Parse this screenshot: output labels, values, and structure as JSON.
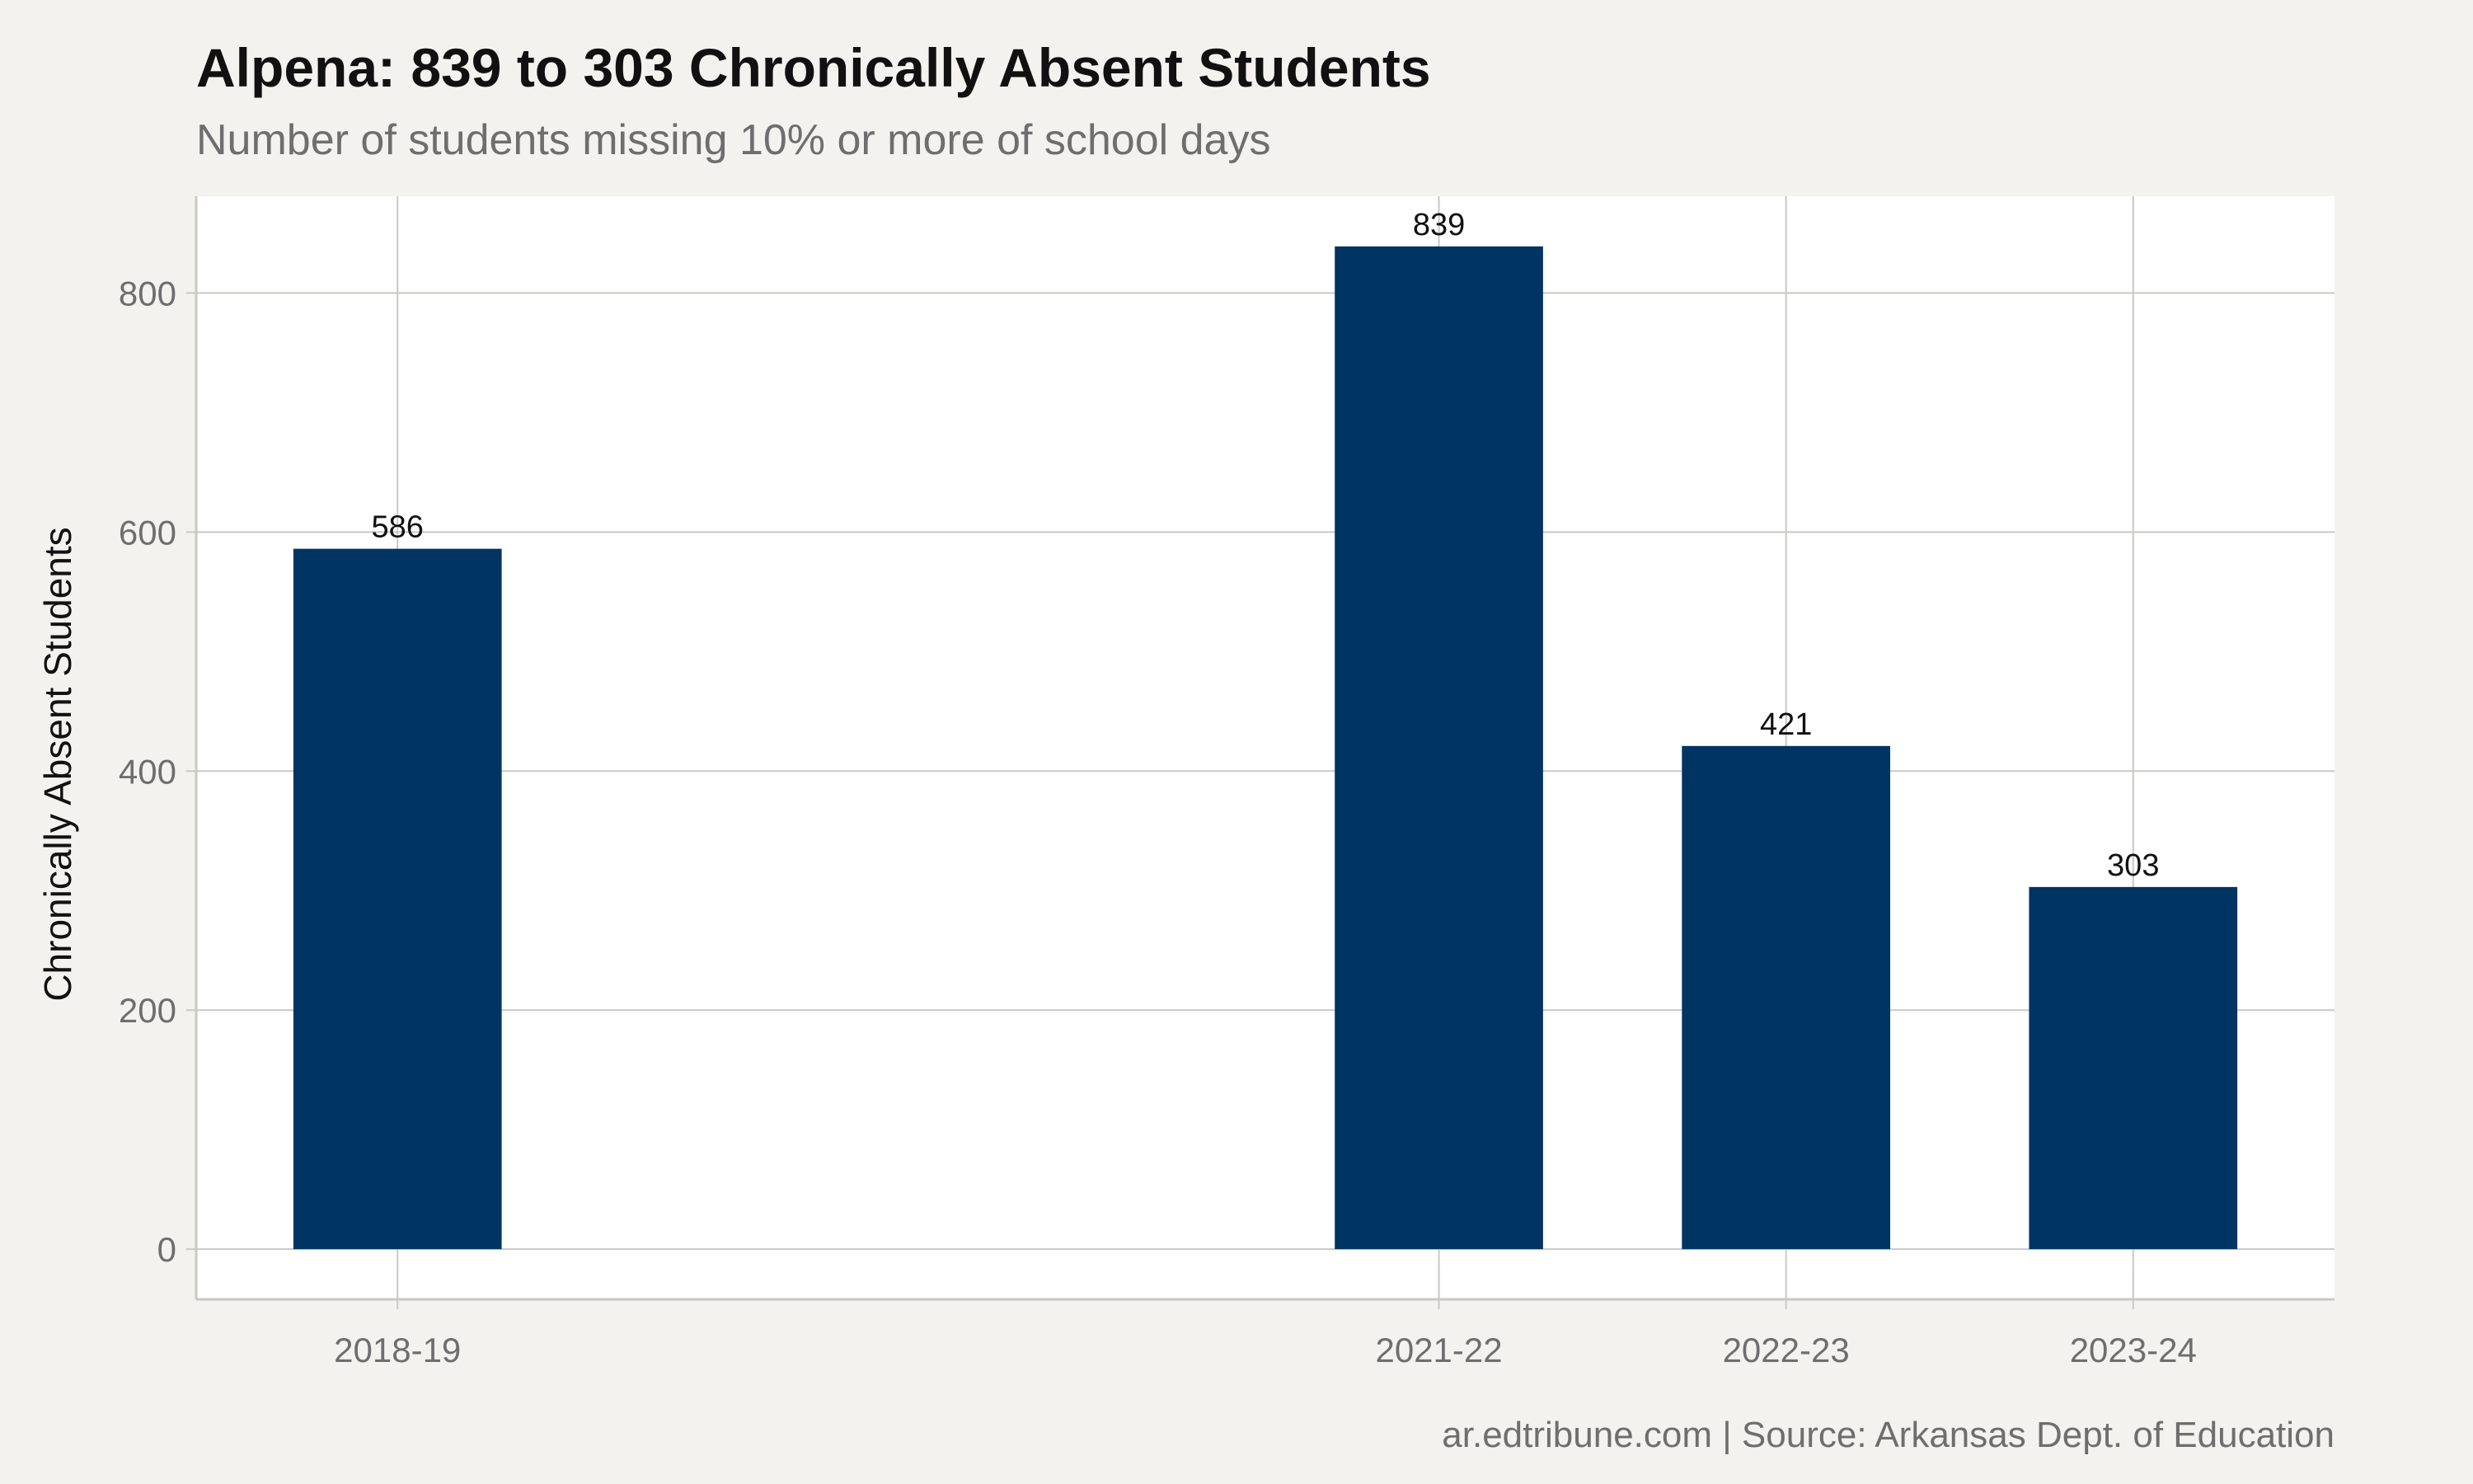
{
  "chart_data": {
    "type": "bar",
    "title": "Alpena: 839 to 303 Chronically Absent Students",
    "subtitle": "Number of students missing 10% or more of school days",
    "ylabel": "Chronically Absent Students",
    "xlabel": "",
    "caption": "ar.edtribune.com | Source: Arkansas Dept. of Education",
    "x_years": [
      2018,
      2021,
      2022,
      2023
    ],
    "categories": [
      "2018-19",
      "2021-22",
      "2022-23",
      "2023-24"
    ],
    "values": [
      586,
      839,
      421,
      303
    ],
    "data_labels": [
      "586",
      "839",
      "421",
      "303"
    ],
    "ylim": [
      -42,
      881
    ],
    "yticks": [
      0,
      200,
      400,
      600,
      800
    ],
    "ytick_labels": [
      "0",
      "200",
      "400",
      "600",
      "800"
    ],
    "xlim": [
      2017.42,
      2023.58
    ],
    "grid": true,
    "legend": "none",
    "colors": {
      "bar": "#003462",
      "panel": "#ffffff",
      "background": "#f4f2ee",
      "grid": "#c8c8c4"
    }
  }
}
